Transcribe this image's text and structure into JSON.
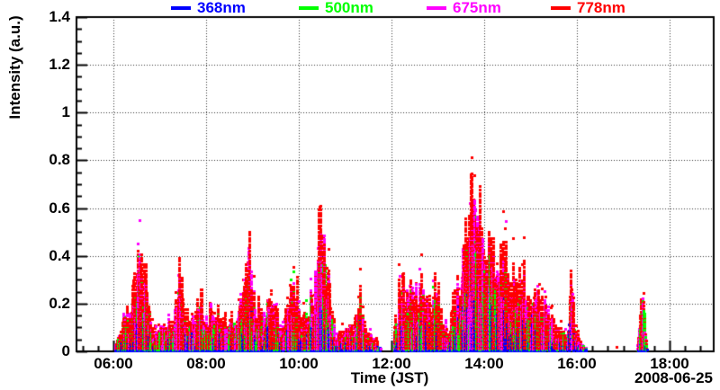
{
  "chart_data": {
    "type": "scatter",
    "title": "",
    "xlabel": "Time (JST)",
    "ylabel": "Intensity (a.u.)",
    "date_label": "2008-06-25",
    "x_unit": "hour of day (JST)",
    "x_range_hours": [
      5.2,
      18.95
    ],
    "ylim": [
      0,
      1.4
    ],
    "x_ticks": [
      {
        "hour": 6,
        "label": "06:00"
      },
      {
        "hour": 8,
        "label": "08:00"
      },
      {
        "hour": 10,
        "label": "10:00"
      },
      {
        "hour": 12,
        "label": "12:00"
      },
      {
        "hour": 14,
        "label": "14:00"
      },
      {
        "hour": 16,
        "label": "16:00"
      },
      {
        "hour": 18,
        "label": "18:00"
      }
    ],
    "x_minor_tick_minutes": 20,
    "y_ticks": [
      {
        "value": 0,
        "label": "0"
      },
      {
        "value": 0.2,
        "label": "0.2"
      },
      {
        "value": 0.4,
        "label": "0.4"
      },
      {
        "value": 0.6,
        "label": "0.6"
      },
      {
        "value": 0.8,
        "label": "0.8"
      },
      {
        "value": 1,
        "label": "1"
      },
      {
        "value": 1.2,
        "label": "1.2"
      },
      {
        "value": 1.4,
        "label": "1.4"
      }
    ],
    "y_minor_tick_step": 0.05,
    "grid": "black dotted lines at every major tick",
    "marker": "3px square dots, densely stacked columns",
    "series": [
      {
        "name": "368nm",
        "color": "#0000ff",
        "envelope_scale": 0.45
      },
      {
        "name": "500nm",
        "color": "#00ff00",
        "envelope_scale": 0.7
      },
      {
        "name": "675nm",
        "color": "#ff00ff",
        "envelope_scale": 0.88
      },
      {
        "name": "778nm",
        "color": "#ff0000",
        "envelope_scale": 1.0
      }
    ],
    "envelope_778nm_hour_intensity": [
      [
        6.03,
        0.02
      ],
      [
        6.08,
        0.08
      ],
      [
        6.16,
        0.15
      ],
      [
        6.25,
        0.22
      ],
      [
        6.35,
        0.2
      ],
      [
        6.47,
        0.32
      ],
      [
        6.6,
        0.45
      ],
      [
        6.67,
        0.4
      ],
      [
        6.74,
        0.28
      ],
      [
        6.82,
        0.14
      ],
      [
        6.95,
        0.1
      ],
      [
        7.08,
        0.13
      ],
      [
        7.22,
        0.18
      ],
      [
        7.36,
        0.22
      ],
      [
        7.44,
        0.36
      ],
      [
        7.52,
        0.18
      ],
      [
        7.64,
        0.14
      ],
      [
        7.78,
        0.2
      ],
      [
        7.92,
        0.24
      ],
      [
        8.06,
        0.2
      ],
      [
        8.2,
        0.25
      ],
      [
        8.34,
        0.18
      ],
      [
        8.48,
        0.14
      ],
      [
        8.62,
        0.18
      ],
      [
        8.75,
        0.24
      ],
      [
        8.84,
        0.34
      ],
      [
        8.9,
        0.5
      ],
      [
        8.98,
        0.35
      ],
      [
        9.08,
        0.22
      ],
      [
        9.22,
        0.18
      ],
      [
        9.36,
        0.24
      ],
      [
        9.5,
        0.2
      ],
      [
        9.64,
        0.13
      ],
      [
        9.76,
        0.18
      ],
      [
        9.84,
        0.43
      ],
      [
        9.94,
        0.3
      ],
      [
        10.06,
        0.18
      ],
      [
        10.2,
        0.28
      ],
      [
        10.34,
        0.33
      ],
      [
        10.47,
        0.6
      ],
      [
        10.56,
        0.4
      ],
      [
        10.66,
        0.33
      ],
      [
        10.78,
        0.12
      ],
      [
        10.92,
        0.08
      ],
      [
        11.06,
        0.1
      ],
      [
        11.2,
        0.16
      ],
      [
        11.32,
        0.28
      ],
      [
        11.42,
        0.12
      ],
      [
        11.55,
        0.08
      ],
      [
        11.68,
        0.04
      ],
      [
        11.78,
        0.0
      ],
      [
        12.03,
        0.0
      ],
      [
        12.1,
        0.18
      ],
      [
        12.2,
        0.32
      ],
      [
        12.32,
        0.28
      ],
      [
        12.44,
        0.34
      ],
      [
        12.56,
        0.28
      ],
      [
        12.68,
        0.33
      ],
      [
        12.8,
        0.28
      ],
      [
        12.92,
        0.34
      ],
      [
        13.03,
        0.28
      ],
      [
        13.14,
        0.16
      ],
      [
        13.26,
        0.13
      ],
      [
        13.38,
        0.28
      ],
      [
        13.5,
        0.4
      ],
      [
        13.6,
        0.55
      ],
      [
        13.73,
        0.72
      ],
      [
        13.84,
        0.6
      ],
      [
        13.95,
        0.73
      ],
      [
        14.06,
        0.62
      ],
      [
        14.18,
        0.5
      ],
      [
        14.3,
        0.42
      ],
      [
        14.42,
        0.45
      ],
      [
        14.54,
        0.38
      ],
      [
        14.66,
        0.28
      ],
      [
        14.8,
        0.32
      ],
      [
        14.94,
        0.3
      ],
      [
        15.06,
        0.22
      ],
      [
        15.2,
        0.3
      ],
      [
        15.34,
        0.26
      ],
      [
        15.46,
        0.15
      ],
      [
        15.58,
        0.1
      ],
      [
        15.7,
        0.13
      ],
      [
        15.8,
        0.08
      ],
      [
        15.87,
        0.35
      ],
      [
        15.94,
        0.14
      ],
      [
        16.04,
        0.06
      ],
      [
        16.14,
        0.04
      ],
      [
        16.22,
        0.0
      ],
      [
        17.3,
        0.0
      ],
      [
        17.36,
        0.18
      ],
      [
        17.42,
        0.3
      ],
      [
        17.47,
        0.12
      ],
      [
        17.52,
        0.0
      ]
    ],
    "sparse_extra_points": [
      {
        "series": "778nm",
        "hour": 16.85,
        "intensity": 0.02
      }
    ],
    "data_gaps_hours": [
      [
        11.78,
        12.03
      ],
      [
        16.22,
        17.3
      ],
      [
        17.52,
        18.95
      ]
    ],
    "legend_position": "top, horizontal row above frame",
    "noise_seed": 20080625,
    "sample_step_hours": 0.01
  }
}
